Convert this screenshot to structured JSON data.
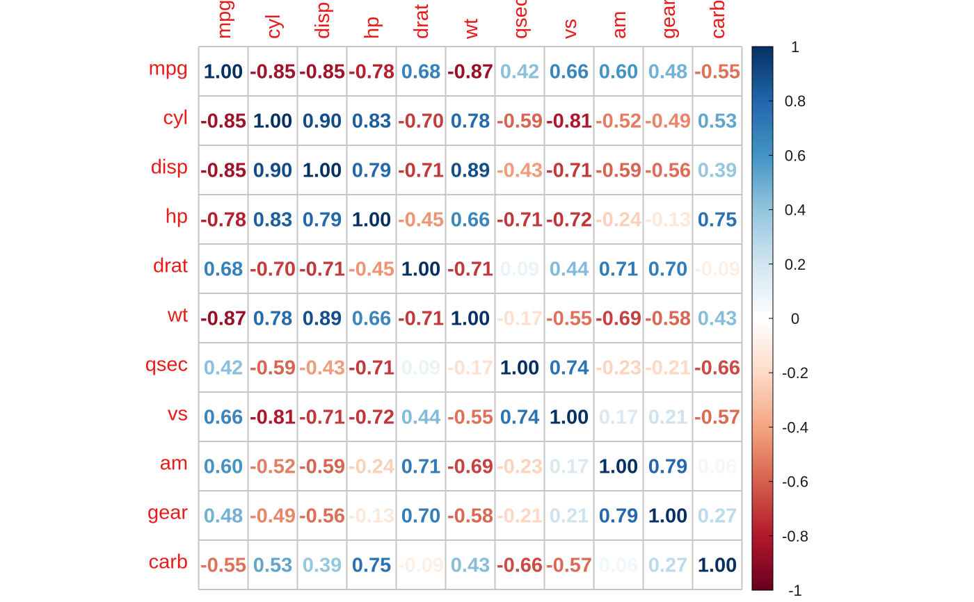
{
  "chart_data": {
    "type": "heatmap",
    "method": "number",
    "variables": [
      "mpg",
      "cyl",
      "disp",
      "hp",
      "drat",
      "wt",
      "qsec",
      "vs",
      "am",
      "gear",
      "carb"
    ],
    "values": [
      [
        "1.00",
        "-0.85",
        "-0.85",
        "-0.78",
        "0.68",
        "-0.87",
        "0.42",
        "0.66",
        "0.60",
        "0.48",
        "-0.55"
      ],
      [
        "-0.85",
        "1.00",
        "0.90",
        "0.83",
        "-0.70",
        "0.78",
        "-0.59",
        "-0.81",
        "-0.52",
        "-0.49",
        "0.53"
      ],
      [
        "-0.85",
        "0.90",
        "1.00",
        "0.79",
        "-0.71",
        "0.89",
        "-0.43",
        "-0.71",
        "-0.59",
        "-0.56",
        "0.39"
      ],
      [
        "-0.78",
        "0.83",
        "0.79",
        "1.00",
        "-0.45",
        "0.66",
        "-0.71",
        "-0.72",
        "-0.24",
        "-0.13",
        "0.75"
      ],
      [
        "0.68",
        "-0.70",
        "-0.71",
        "-0.45",
        "1.00",
        "-0.71",
        "0.09",
        "0.44",
        "0.71",
        "0.70",
        "-0.09"
      ],
      [
        "-0.87",
        "0.78",
        "0.89",
        "0.66",
        "-0.71",
        "1.00",
        "-0.17",
        "-0.55",
        "-0.69",
        "-0.58",
        "0.43"
      ],
      [
        "0.42",
        "-0.59",
        "-0.43",
        "-0.71",
        "0.09",
        "-0.17",
        "1.00",
        "0.74",
        "-0.23",
        "-0.21",
        "-0.66"
      ],
      [
        "0.66",
        "-0.81",
        "-0.71",
        "-0.72",
        "0.44",
        "-0.55",
        "0.74",
        "1.00",
        "0.17",
        "0.21",
        "-0.57"
      ],
      [
        "0.60",
        "-0.52",
        "-0.59",
        "-0.24",
        "0.71",
        "-0.69",
        "-0.23",
        "0.17",
        "1.00",
        "0.79",
        "0.06"
      ],
      [
        "0.48",
        "-0.49",
        "-0.56",
        "-0.13",
        "0.70",
        "-0.58",
        "-0.21",
        "0.21",
        "0.79",
        "1.00",
        "0.27"
      ],
      [
        "-0.55",
        "0.53",
        "0.39",
        "0.75",
        "-0.09",
        "0.43",
        "-0.66",
        "-0.57",
        "0.06",
        "0.27",
        "1.00"
      ]
    ],
    "colorbar": {
      "ticks": [
        "1",
        "0.8",
        "0.6",
        "0.4",
        "0.2",
        "0",
        "-0.2",
        "-0.4",
        "-0.6",
        "-0.8",
        "-1"
      ],
      "range": [
        -1,
        1
      ],
      "colors": [
        "#67001f",
        "#b2182b",
        "#d6604d",
        "#f4a582",
        "#fddbc7",
        "#ffffff",
        "#d1e5f0",
        "#92c5de",
        "#4393c3",
        "#2166ac",
        "#053061"
      ]
    },
    "label_color": "#e81a1a",
    "grid": true
  }
}
